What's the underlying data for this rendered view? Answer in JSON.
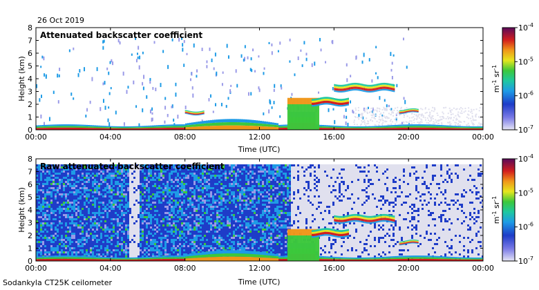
{
  "header": {
    "date": "26 Oct 2019",
    "footer": "Sodankyla CT25K ceilometer"
  },
  "chart_data": [
    {
      "type": "heatmap",
      "title": "Attenuated backscatter coefficient",
      "xlabel": "Time (UTC)",
      "ylabel": "Height (km)",
      "x_ticks": [
        "00:00",
        "04:00",
        "08:00",
        "12:00",
        "16:00",
        "20:00",
        "00:00"
      ],
      "y_ticks": [
        "0",
        "1",
        "2",
        "3",
        "4",
        "5",
        "6",
        "7",
        "8"
      ],
      "xlim_hours": [
        0,
        24
      ],
      "ylim_km": [
        0,
        8
      ],
      "colorbar": {
        "ticks": [
          "10",
          "10",
          "10",
          "10"
        ],
        "exponents": [
          "-7",
          "-6",
          "-5",
          "-4"
        ],
        "label_base": "m",
        "label_exp1": "-1",
        "label_mid": " sr",
        "label_exp2": "-1",
        "log_scale": true,
        "range": [
          1e-07,
          0.0001
        ]
      },
      "features": [
        {
          "name": "boundary layer",
          "from_h": 0,
          "to_h": 24,
          "top_km": 0.4
        },
        {
          "name": "low cloud layer",
          "from_h": 13.5,
          "to_h": 15.5,
          "base_km": 0.5,
          "top_km": 2.6
        },
        {
          "name": "mid cloud",
          "from_h": 16,
          "to_h": 19.2,
          "base_km": 3.0,
          "top_km": 3.6
        },
        {
          "name": "mid cloud",
          "from_h": 14.8,
          "to_h": 16.8,
          "base_km": 1.9,
          "top_km": 2.6
        }
      ]
    },
    {
      "type": "heatmap",
      "title": "Raw attenuated backscatter coefficient",
      "xlabel": "Time (UTC)",
      "ylabel": "Height (km)",
      "x_ticks": [
        "00:00",
        "04:00",
        "08:00",
        "12:00",
        "16:00",
        "20:00",
        "00:00"
      ],
      "y_ticks": [
        "0",
        "1",
        "2",
        "3",
        "4",
        "5",
        "6",
        "7",
        "8"
      ],
      "xlim_hours": [
        0,
        24
      ],
      "ylim_km": [
        0,
        8
      ],
      "colorbar": {
        "ticks": [
          "10",
          "10",
          "10",
          "10"
        ],
        "exponents": [
          "-7",
          "-6",
          "-5",
          "-4"
        ],
        "label_base": "m",
        "label_exp1": "-1",
        "label_mid": " sr",
        "label_exp2": "-1",
        "log_scale": true,
        "range": [
          1e-07,
          0.0001
        ]
      }
    }
  ],
  "colors": {
    "low": "#e8e8f0",
    "noise": "#1e3cc8",
    "cloud": "#c81e1e",
    "bar_top": "#5a0a5a"
  }
}
